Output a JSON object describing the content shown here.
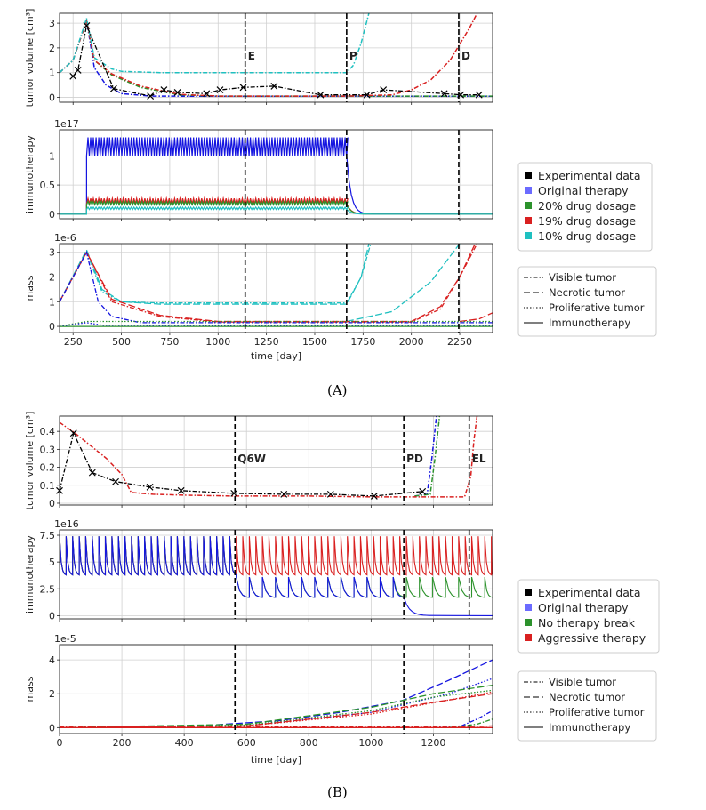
{
  "figure_a": {
    "caption": "(A)",
    "phase_labels": [
      "E",
      "P",
      "D"
    ],
    "phase_days": [
      1140,
      1665,
      2245
    ],
    "legend_therapy": [
      {
        "label": "Experimental data",
        "color": "#000000"
      },
      {
        "label": "Original therapy",
        "color": "#6b6bff"
      },
      {
        "label": "20% drug dosage",
        "color": "#2c922c"
      },
      {
        "label": "19% drug dosage",
        "color": "#d92020"
      },
      {
        "label": "10% drug dosage",
        "color": "#1fc0c0"
      }
    ],
    "legend_style": [
      "Visible tumor",
      "Necrotic tumor",
      "Proliferative tumor",
      "Immunotherapy"
    ],
    "xlabel": "time [day]"
  },
  "figure_b": {
    "caption": "(B)",
    "phase_labels": [
      "Q6W",
      "PD",
      "EL"
    ],
    "phase_days": [
      563,
      1105,
      1315
    ],
    "legend_therapy": [
      {
        "label": "Experimental data",
        "color": "#000000"
      },
      {
        "label": "Original therapy",
        "color": "#6b6bff"
      },
      {
        "label": "No therapy break",
        "color": "#2c922c"
      },
      {
        "label": "Aggressive therapy",
        "color": "#d92020"
      }
    ],
    "legend_style": [
      "Visible tumor",
      "Necrotic tumor",
      "Proliferative tumor",
      "Immunotherapy"
    ],
    "xlabel": "time [day]"
  },
  "chart_data": [
    {
      "type": "line",
      "ylabel": "tumor volume [cm³]",
      "xlim": [
        180,
        2420
      ],
      "ylim": [
        -0.2,
        3.4
      ],
      "xticks": [
        250,
        500,
        750,
        1000,
        1250,
        1500,
        1750,
        2000,
        2250
      ],
      "yticks": [
        0,
        1,
        2,
        3
      ],
      "experimental": {
        "x": [
          250,
          275,
          320,
          460,
          650,
          720,
          790,
          940,
          1010,
          1130,
          1290,
          1530,
          1770,
          1855,
          2170,
          2255,
          2350
        ],
        "y": [
          0.85,
          1.1,
          2.9,
          0.35,
          0.05,
          0.3,
          0.2,
          0.15,
          0.3,
          0.4,
          0.45,
          0.1,
          0.1,
          0.3,
          0.15,
          0.1,
          0.1
        ]
      },
      "series": [
        {
          "name": "Original therapy",
          "color": "#1515e0",
          "x": [
            180,
            250,
            320,
            360,
            420,
            500,
            650,
            1000,
            1665,
            2420
          ],
          "y": [
            1.0,
            1.5,
            3.1,
            1.2,
            0.5,
            0.15,
            0.05,
            0.04,
            0.04,
            0.04
          ]
        },
        {
          "name": "20% drug dosage",
          "color": "#2c922c",
          "x": [
            180,
            250,
            320,
            360,
            450,
            600,
            800,
            1000,
            1665,
            2420
          ],
          "y": [
            1.0,
            1.5,
            3.1,
            1.5,
            0.9,
            0.4,
            0.1,
            0.05,
            0.05,
            0.05
          ]
        },
        {
          "name": "19% drug dosage",
          "color": "#d92020",
          "x": [
            180,
            250,
            320,
            360,
            450,
            600,
            800,
            1000,
            1665,
            1900,
            2000,
            2100,
            2200,
            2300,
            2340
          ],
          "y": [
            1.0,
            1.5,
            3.1,
            1.5,
            0.95,
            0.45,
            0.12,
            0.05,
            0.05,
            0.1,
            0.3,
            0.7,
            1.5,
            2.8,
            3.5
          ]
        },
        {
          "name": "10% drug dosage",
          "color": "#1fc0c0",
          "x": [
            180,
            250,
            320,
            360,
            450,
            500,
            700,
            1000,
            1665,
            1700,
            1740,
            1780
          ],
          "y": [
            1.0,
            1.5,
            3.2,
            1.6,
            1.15,
            1.05,
            1.0,
            1.0,
            1.0,
            1.3,
            2.2,
            3.5
          ]
        }
      ]
    },
    {
      "type": "line",
      "ylabel": "immunotherapy",
      "scale": "1e17",
      "xlim": [
        180,
        2420
      ],
      "ylim": [
        -0.08,
        1.45
      ],
      "xticks": [
        250,
        500,
        750,
        1000,
        1250,
        1500,
        1750,
        2000,
        2250
      ],
      "yticks": [
        0.0,
        0.5,
        1.0
      ],
      "series": [
        {
          "name": "Original therapy",
          "color": "#1515e0",
          "start": 320,
          "end": 1665,
          "low": 1.0,
          "high": 1.32
        },
        {
          "name": "19% drug dosage",
          "color": "#d92020",
          "start": 320,
          "end": 1665,
          "low": 0.18,
          "high": 0.27
        },
        {
          "name": "20% drug dosage",
          "color": "#2c922c",
          "start": 320,
          "end": 1665,
          "low": 0.16,
          "high": 0.22
        },
        {
          "name": "10% drug dosage",
          "color": "#1fc0c0",
          "start": 320,
          "end": 1665,
          "low": 0.08,
          "high": 0.12
        }
      ]
    },
    {
      "type": "line",
      "ylabel": "mass",
      "scale": "1e-6",
      "xlim": [
        180,
        2420
      ],
      "ylim": [
        -0.25,
        3.35
      ],
      "xticks": [
        250,
        500,
        750,
        1000,
        1250,
        1500,
        1750,
        2000,
        2250
      ],
      "xticklabels": [
        "250",
        "500",
        "750",
        "1000",
        "1250",
        "1500",
        "1750",
        "2000",
        "2250"
      ],
      "yticks": [
        0,
        1,
        2,
        3
      ]
    },
    {
      "type": "line",
      "ylabel": "tumor volume [cm³]",
      "xlim": [
        0,
        1390
      ],
      "ylim": [
        -0.01,
        0.485
      ],
      "xticks": [
        0,
        200,
        400,
        600,
        800,
        1000,
        1200
      ],
      "yticks": [
        0.0,
        0.1,
        0.2,
        0.3,
        0.4
      ],
      "experimental": {
        "x": [
          0,
          45,
          105,
          180,
          290,
          390,
          560,
          720,
          870,
          1010,
          1165
        ],
        "y": [
          0.07,
          0.39,
          0.17,
          0.12,
          0.09,
          0.07,
          0.055,
          0.05,
          0.05,
          0.04,
          0.065
        ]
      },
      "series": [
        {
          "name": "Original therapy",
          "color": "#1515e0",
          "x": [
            1140,
            1180,
            1195,
            1210
          ],
          "y": [
            0.04,
            0.05,
            0.25,
            0.5
          ]
        },
        {
          "name": "No therapy break",
          "color": "#2c922c",
          "x": [
            1140,
            1190,
            1205,
            1220
          ],
          "y": [
            0.04,
            0.05,
            0.25,
            0.5
          ]
        },
        {
          "name": "Aggressive therapy",
          "color": "#d92020",
          "x": [
            0,
            50,
            100,
            150,
            200,
            230,
            300,
            400,
            560,
            800,
            1000,
            1300,
            1320,
            1330,
            1340
          ],
          "y": [
            0.45,
            0.39,
            0.32,
            0.25,
            0.16,
            0.06,
            0.05,
            0.045,
            0.04,
            0.04,
            0.035,
            0.035,
            0.15,
            0.35,
            0.5
          ]
        }
      ]
    },
    {
      "type": "line",
      "ylabel": "immunotherapy",
      "scale": "1e16",
      "xlim": [
        0,
        1390
      ],
      "ylim": [
        -0.3,
        8.0
      ],
      "xticks": [
        0,
        200,
        400,
        600,
        800,
        1000,
        1200
      ],
      "yticks": [
        0.0,
        2.5,
        5.0,
        7.5
      ],
      "series": [
        {
          "name": "Original therapy",
          "color": "#1515e0",
          "periods": [
            21,
            42
          ],
          "low": [
            3.8,
            1.7
          ],
          "high": [
            7.4,
            3.6
          ],
          "end": 1105
        },
        {
          "name": "No therapy break",
          "color": "#2c922c",
          "periods": [
            21,
            42
          ],
          "low": [
            3.8,
            1.7
          ],
          "high": [
            7.4,
            3.6
          ],
          "end": 1390
        },
        {
          "name": "Aggressive therapy",
          "color": "#d92020",
          "periods": [
            21,
            21
          ],
          "low": [
            3.8,
            3.8
          ],
          "high": [
            7.4,
            7.4
          ],
          "end": 1390
        }
      ]
    },
    {
      "type": "line",
      "ylabel": "mass",
      "scale": "1e-5",
      "xlim": [
        0,
        1390
      ],
      "ylim": [
        -0.35,
        4.9
      ],
      "xticks": [
        0,
        200,
        400,
        600,
        800,
        1000,
        1200
      ],
      "xticklabels": [
        "0",
        "200",
        "400",
        "600",
        "800",
        "1000",
        "1200"
      ],
      "yticks": [
        0,
        2,
        4
      ]
    }
  ]
}
